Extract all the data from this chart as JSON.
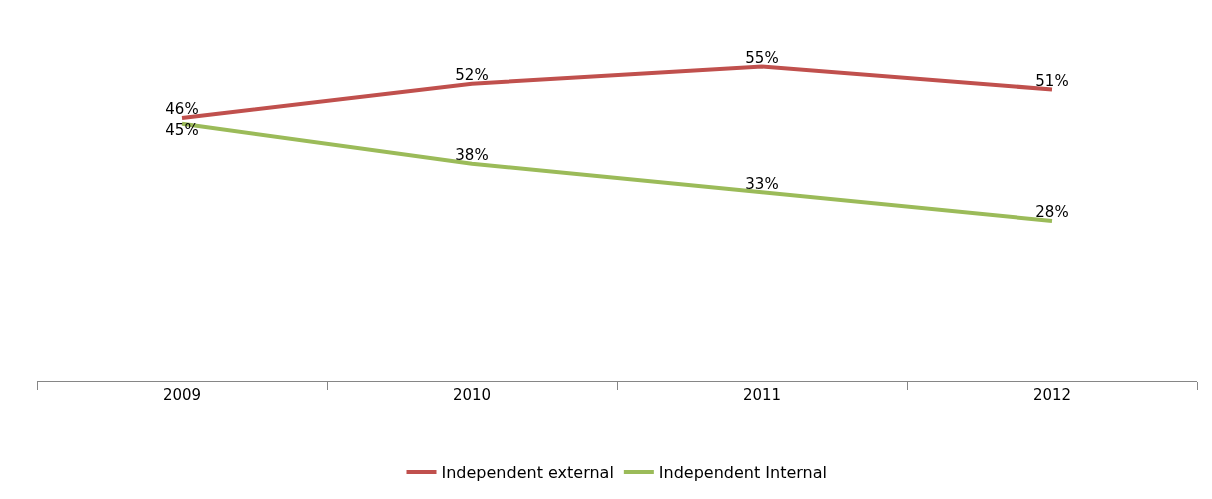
{
  "chart_data": {
    "type": "line",
    "categories": [
      "2009",
      "2010",
      "2011",
      "2012"
    ],
    "series": [
      {
        "name": "Independent external",
        "color": "#c0504d",
        "values": [
          46,
          52,
          55,
          51
        ],
        "value_labels": [
          "46%",
          "52%",
          "55%",
          "51%"
        ]
      },
      {
        "name": "Independent Internal",
        "color": "#9bbb59",
        "values": [
          45,
          38,
          33,
          28
        ],
        "value_labels": [
          "45%",
          "38%",
          "33%",
          "28%"
        ]
      }
    ],
    "legend": "bottom",
    "marker": "none",
    "line_style": "solid"
  }
}
